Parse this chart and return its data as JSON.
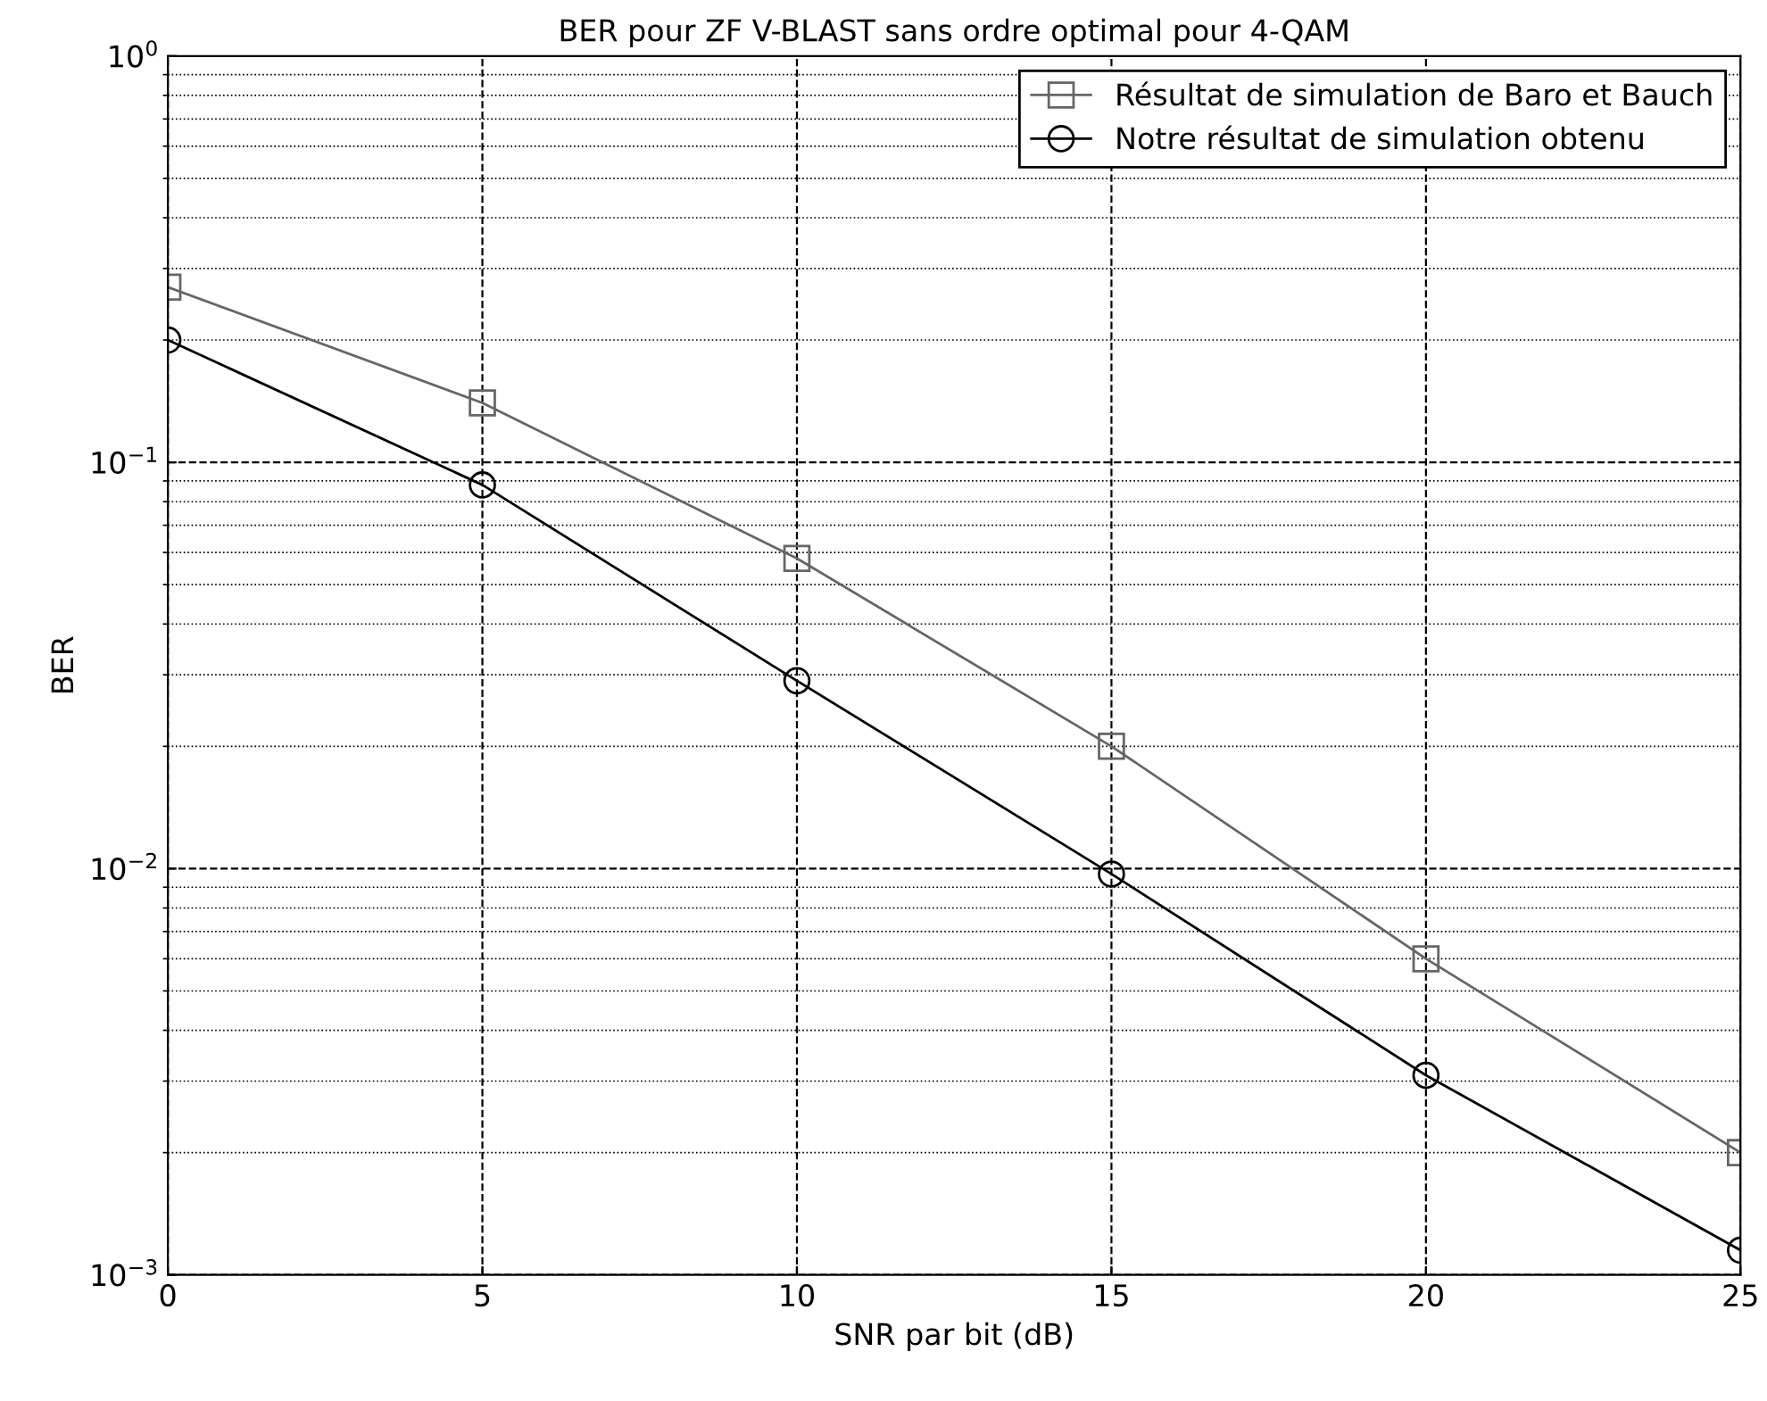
{
  "chart_data": {
    "type": "line",
    "title": "BER pour ZF V-BLAST sans ordre optimal pour 4-QAM",
    "xlabel": "SNR par bit (dB)",
    "ylabel": "BER",
    "x": [
      0,
      5,
      10,
      15,
      20,
      25
    ],
    "series": [
      {
        "name": "Résultat de simulation de Baro et Bauch",
        "color": "#666666",
        "marker": "square",
        "values": [
          0.27,
          0.14,
          0.058,
          0.02,
          0.006,
          0.002
        ]
      },
      {
        "name": "Notre résultat de simulation obtenu",
        "color": "#000000",
        "marker": "circle",
        "values": [
          0.2,
          0.088,
          0.029,
          0.0097,
          0.0031,
          0.00115
        ]
      }
    ],
    "log": "y",
    "xlim": [
      0,
      25
    ],
    "ylim": [
      0.001,
      1
    ],
    "xticks": [
      0,
      5,
      10,
      15,
      20,
      25
    ],
    "yticks": [
      {
        "value": 0.001,
        "label": "10$^{−3}$"
      },
      {
        "value": 0.01,
        "label": "10$^{−2}$"
      },
      {
        "value": 0.1,
        "label": "10$^{−1}$"
      },
      {
        "value": 1,
        "label": "10$^{0}$"
      }
    ],
    "grid": true,
    "legend": "top right",
    "line_style": "solid"
  }
}
